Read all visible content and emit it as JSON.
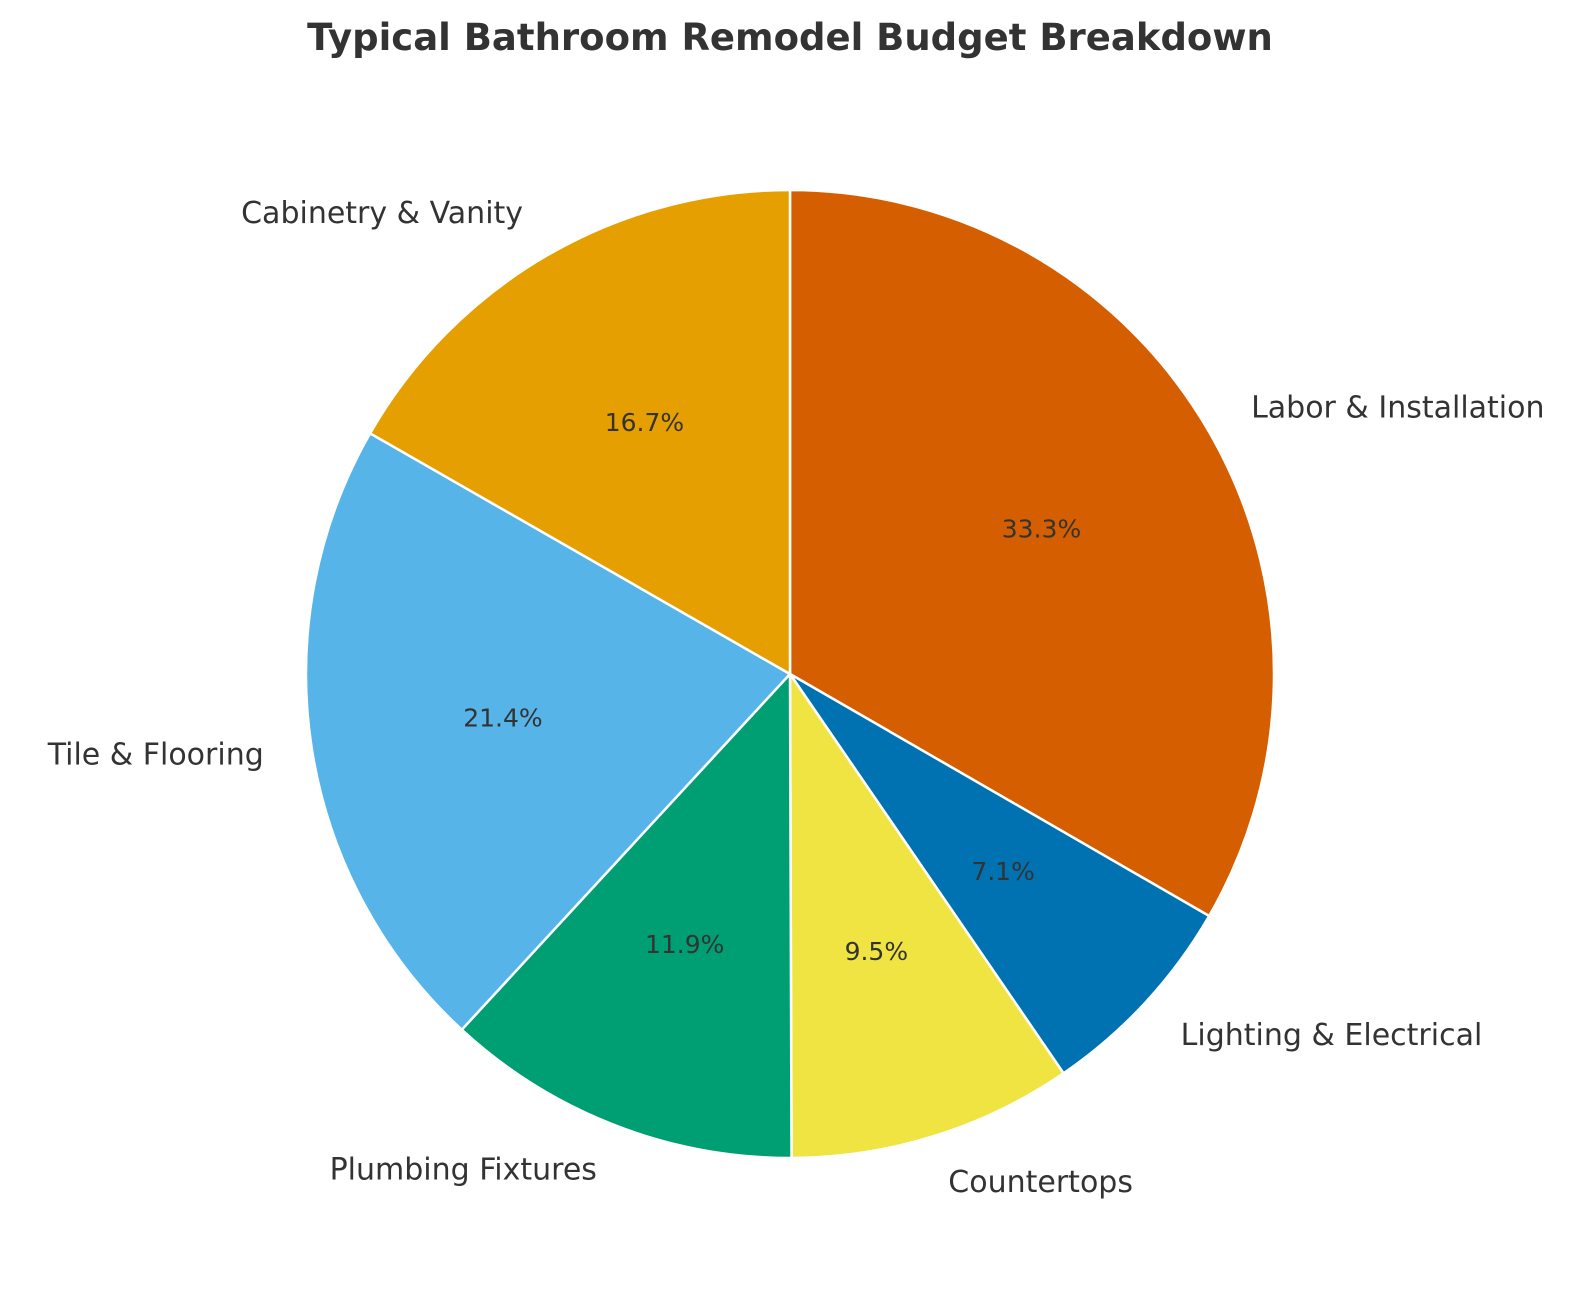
{
  "chart_data": {
    "type": "pie",
    "title": "Typical Bathroom Remodel Budget Breakdown",
    "start_angle_deg": 90,
    "direction": "clockwise",
    "slices": [
      {
        "label": "Labor & Installation",
        "value": 33.3,
        "pct_label": "33.3%",
        "color": "#D55E00"
      },
      {
        "label": "Lighting & Electrical",
        "value": 7.1,
        "pct_label": "7.1%",
        "color": "#0072B2"
      },
      {
        "label": "Countertops",
        "value": 9.5,
        "pct_label": "9.5%",
        "color": "#F0E442"
      },
      {
        "label": "Plumbing Fixtures",
        "value": 11.9,
        "pct_label": "11.9%",
        "color": "#009E73"
      },
      {
        "label": "Tile & Flooring",
        "value": 21.4,
        "pct_label": "21.4%",
        "color": "#56B4E9"
      },
      {
        "label": "Cabinetry & Vanity",
        "value": 16.7,
        "pct_label": "16.7%",
        "color": "#E69F00"
      }
    ]
  }
}
